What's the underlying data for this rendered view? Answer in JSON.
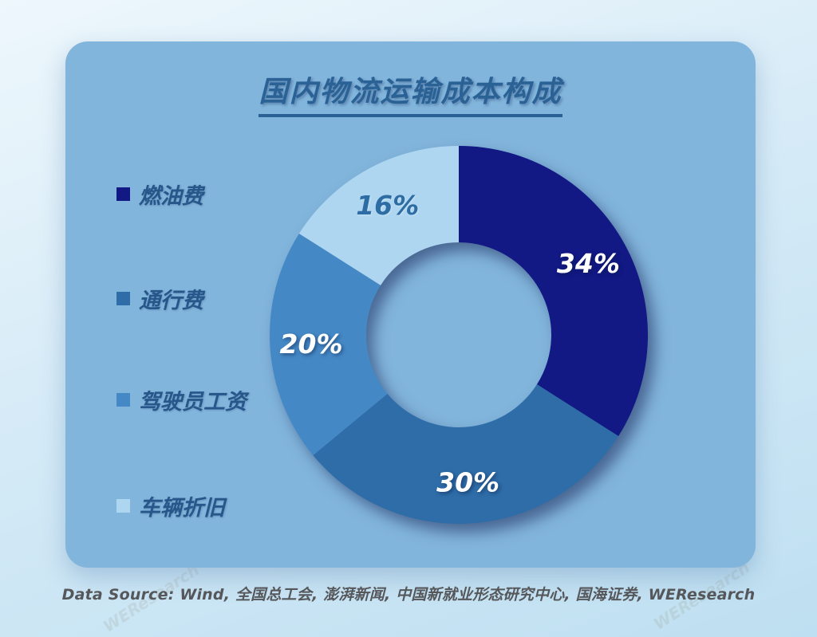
{
  "header": {
    "title": "国内物流运输成本构成"
  },
  "chart_data": {
    "type": "pie",
    "subtype": "donut",
    "title": "国内物流运输成本构成",
    "labels": [
      "燃油费",
      "通行费",
      "驾驶员工资",
      "车辆折旧"
    ],
    "values": [
      34,
      30,
      20,
      16
    ],
    "unit": "%",
    "colors": [
      "#121884",
      "#2E6DA8",
      "#4489C6",
      "#AED6F0"
    ],
    "label_colors": [
      "#FFFFFF",
      "#FFFFFF",
      "#FFFFFF",
      "#2E6DA4"
    ],
    "start_angle_deg": 0,
    "direction": "clockwise",
    "inner_radius_ratio": 0.49,
    "legend_position": "left",
    "background_card_color": "#82B5DC"
  },
  "footer": {
    "data_source": "Data Source: Wind, 全国总工会, 澎湃新闻, 中国新就业形态研究中心, 国海证券, WEResearch"
  },
  "watermark": {
    "text": "WEResearch"
  }
}
